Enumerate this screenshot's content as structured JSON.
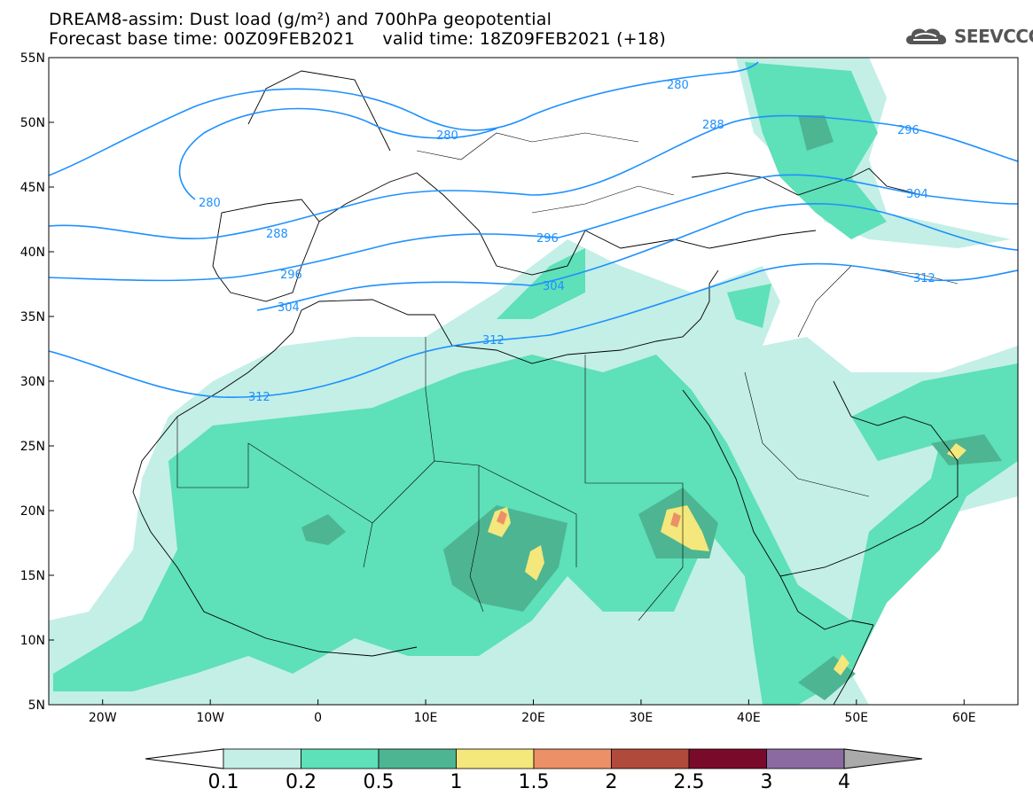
{
  "header": {
    "title_line1": "DREAM8-assim: Dust load (g/m²) and 700hPa geopotential",
    "title_line2": "Forecast base time: 00Z09FEB2021     valid time: 18Z09FEB2021 (+18)"
  },
  "logo": {
    "text": "SEEVCCC",
    "icon": "cloud-icon"
  },
  "map": {
    "lon_range": [
      -25,
      65
    ],
    "lat_range": [
      5,
      55
    ],
    "lat_ticks": [
      "55N",
      "50N",
      "45N",
      "40N",
      "35N",
      "30N",
      "25N",
      "20N",
      "15N",
      "10N",
      "5N"
    ],
    "lon_ticks": [
      "20W",
      "10W",
      "0",
      "10E",
      "20E",
      "30E",
      "40E",
      "50E",
      "60E"
    ],
    "geopotential_contour_labels": [
      "280",
      "280",
      "280",
      "288",
      "288",
      "296",
      "296",
      "296",
      "304",
      "304",
      "304",
      "312",
      "312",
      "312"
    ],
    "contour_color": "#1e90ff"
  },
  "colorbar": {
    "labels": [
      "0.1",
      "0.2",
      "0.5",
      "1",
      "1.5",
      "2",
      "2.5",
      "3",
      "4"
    ],
    "colors": [
      "#c3efe6",
      "#5ee0b8",
      "#4db592",
      "#f4e77c",
      "#ec9067",
      "#b04a3a",
      "#7a0a2a",
      "#8a6aa0"
    ],
    "under_color": "#ffffff",
    "over_color": "#aaaaaa"
  }
}
